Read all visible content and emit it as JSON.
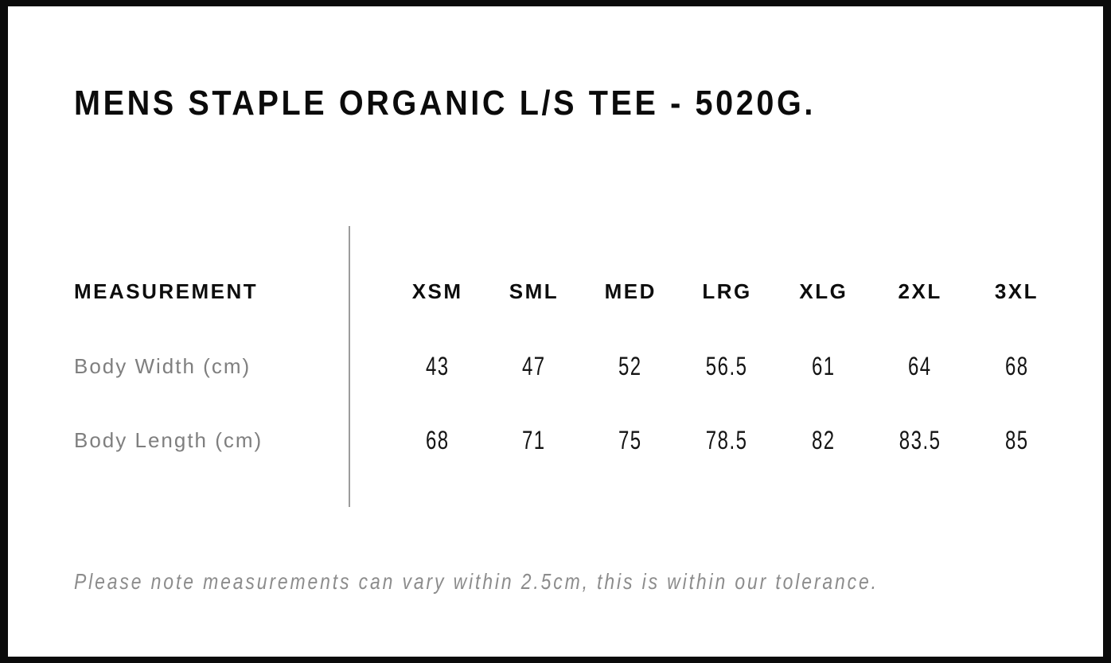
{
  "title": "MENS STAPLE ORGANIC L/S TEE - 5020G.",
  "footer_note": "Please note measurements can vary within 2.5cm, this is within our tolerance.",
  "chart_data": {
    "type": "table",
    "title": "MENS STAPLE ORGANIC L/S TEE - 5020G.",
    "columns": [
      "MEASUREMENT",
      "XSM",
      "SML",
      "MED",
      "LRG",
      "XLG",
      "2XL",
      "3XL"
    ],
    "rows": [
      {
        "label": "Body Width (cm)",
        "values": [
          43,
          47,
          52,
          56.5,
          61,
          64,
          68
        ]
      },
      {
        "label": "Body Length (cm)",
        "values": [
          68,
          71,
          75,
          78.5,
          82,
          83.5,
          85
        ]
      }
    ],
    "note": "Please note measurements can vary within 2.5cm, this is within our tolerance.",
    "layout": {
      "separator": "vertical-rule-between-label-and-sizes",
      "grid": "off"
    }
  },
  "colors": {
    "frame_border": "#0b0b0b",
    "text_primary": "#0d0d0d",
    "text_muted": "#7f7f7f",
    "note_text": "#8c8c8c",
    "separator_line": "#9c9c9c",
    "background": "#ffffff"
  }
}
